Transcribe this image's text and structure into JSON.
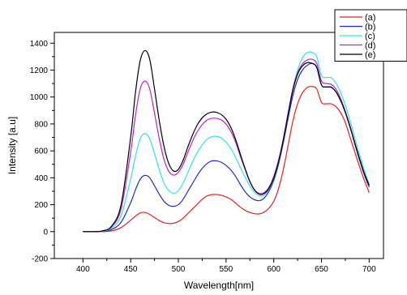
{
  "chart_data": {
    "type": "line",
    "xlabel": "Wavelength[nm]",
    "ylabel": "Intensity [a.u]",
    "xlim": [
      370,
      715
    ],
    "ylim": [
      -200,
      1480
    ],
    "xticks": [
      400,
      450,
      500,
      550,
      600,
      650,
      700
    ],
    "yticks": [
      -200,
      0,
      200,
      400,
      600,
      800,
      1000,
      1200,
      1400
    ],
    "legend_position": "top-right",
    "x": [
      400,
      410,
      420,
      430,
      440,
      450,
      455,
      460,
      465,
      470,
      475,
      480,
      485,
      490,
      495,
      500,
      505,
      510,
      515,
      520,
      525,
      530,
      535,
      540,
      545,
      550,
      555,
      560,
      565,
      570,
      575,
      580,
      585,
      590,
      595,
      600,
      605,
      610,
      615,
      620,
      625,
      630,
      635,
      640,
      645,
      650,
      655,
      660,
      665,
      670,
      675,
      680,
      685,
      690,
      695,
      700
    ],
    "series": [
      {
        "name": "(a)",
        "color": "#e8201e",
        "values": [
          0,
          0,
          0,
          5,
          30,
          85,
          115,
          138,
          143,
          128,
          105,
          82,
          66,
          60,
          62,
          75,
          100,
          135,
          170,
          205,
          240,
          265,
          275,
          276,
          270,
          258,
          240,
          212,
          182,
          158,
          142,
          133,
          132,
          145,
          175,
          225,
          320,
          460,
          640,
          820,
          950,
          1030,
          1070,
          1078,
          1060,
          960,
          950,
          950,
          930,
          885,
          810,
          700,
          590,
          480,
          380,
          290
        ]
      },
      {
        "name": "(b)",
        "color": "#1f2ad2",
        "values": [
          0,
          0,
          2,
          15,
          70,
          215,
          310,
          390,
          418,
          400,
          340,
          278,
          225,
          195,
          188,
          200,
          240,
          300,
          360,
          420,
          470,
          505,
          525,
          526,
          515,
          492,
          458,
          410,
          350,
          296,
          258,
          236,
          230,
          250,
          300,
          380,
          500,
          660,
          840,
          1010,
          1130,
          1200,
          1235,
          1250,
          1220,
          1090,
          1075,
          1075,
          1040,
          975,
          890,
          780,
          650,
          530,
          420,
          330
        ]
      },
      {
        "name": "(c)",
        "color": "#2ce6e6",
        "values": [
          0,
          0,
          3,
          25,
          120,
          390,
          560,
          690,
          728,
          690,
          580,
          460,
          360,
          305,
          285,
          305,
          360,
          440,
          520,
          590,
          645,
          685,
          705,
          708,
          695,
          665,
          618,
          552,
          475,
          405,
          338,
          290,
          265,
          272,
          315,
          395,
          515,
          680,
          870,
          1060,
          1200,
          1290,
          1330,
          1332,
          1300,
          1160,
          1145,
          1145,
          1105,
          1035,
          940,
          825,
          695,
          570,
          455,
          350
        ]
      },
      {
        "name": "(d)",
        "color": "#c21fd2",
        "values": [
          0,
          0,
          4,
          35,
          170,
          590,
          860,
          1060,
          1118,
          1060,
          880,
          690,
          535,
          448,
          420,
          440,
          500,
          590,
          675,
          745,
          795,
          828,
          842,
          842,
          830,
          800,
          745,
          665,
          560,
          462,
          370,
          310,
          283,
          290,
          330,
          410,
          530,
          690,
          880,
          1060,
          1180,
          1245,
          1275,
          1280,
          1250,
          1120,
          1100,
          1095,
          1060,
          990,
          895,
          785,
          660,
          540,
          430,
          340
        ]
      },
      {
        "name": "(e)",
        "color": "#000000",
        "values": [
          0,
          0,
          5,
          40,
          200,
          700,
          1030,
          1270,
          1345,
          1280,
          1060,
          825,
          632,
          505,
          450,
          462,
          530,
          630,
          720,
          795,
          845,
          875,
          888,
          886,
          870,
          835,
          775,
          685,
          575,
          468,
          372,
          307,
          278,
          283,
          322,
          400,
          520,
          680,
          870,
          1050,
          1170,
          1230,
          1255,
          1250,
          1220,
          1090,
          1075,
          1072,
          1040,
          975,
          885,
          775,
          655,
          538,
          430,
          345
        ]
      }
    ]
  }
}
